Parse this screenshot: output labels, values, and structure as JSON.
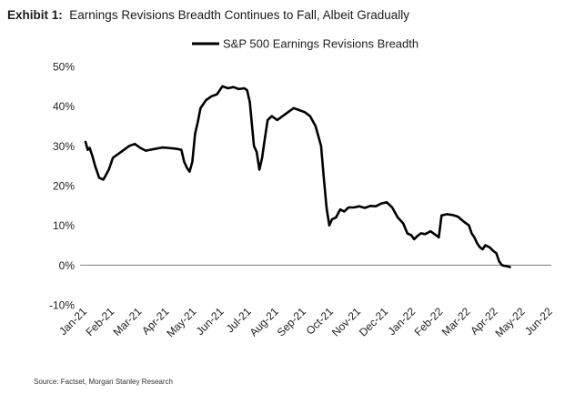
{
  "header": {
    "exhibit_label": "Exhibit 1:",
    "title_text": "Earnings Revisions Breadth Continues to Fall, Albeit Gradually"
  },
  "source": "Source: Factset, Morgan Stanley Research",
  "colors": {
    "series": "#000000",
    "zero_line": "#7f7f7f",
    "text": "#222222"
  },
  "chart_data": {
    "type": "line",
    "title": "Earnings Revisions Breadth Continues to Fall, Albeit Gradually",
    "xlabel": "",
    "ylabel": "",
    "ylim": [
      -10,
      50
    ],
    "grid": false,
    "legend_position": "top-center",
    "yticks": [
      50,
      40,
      30,
      20,
      10,
      0,
      -10
    ],
    "ytick_labels": [
      "50%",
      "40%",
      "30%",
      "20%",
      "10%",
      "0%",
      "-10%"
    ],
    "xtick_labels": [
      "Jan-21",
      "Feb-21",
      "Mar-21",
      "Apr-21",
      "May-21",
      "Jun-21",
      "Jul-21",
      "Aug-21",
      "Sep-21",
      "Oct-21",
      "Nov-21",
      "Dec-21",
      "Jan-22",
      "Feb-22",
      "Mar-22",
      "Apr-22",
      "May-22",
      "Jun-22"
    ],
    "x_unit": "month index (0 = Jan-21)",
    "series": [
      {
        "name": "S&P 500 Earnings Revisions Breadth",
        "color": "#000000",
        "points": [
          [
            0.0,
            31.0
          ],
          [
            0.08,
            29.0
          ],
          [
            0.15,
            29.5
          ],
          [
            0.25,
            27.5
          ],
          [
            0.35,
            25.0
          ],
          [
            0.5,
            22.0
          ],
          [
            0.65,
            21.5
          ],
          [
            0.85,
            24.0
          ],
          [
            1.0,
            27.0
          ],
          [
            1.3,
            28.5
          ],
          [
            1.6,
            30.0
          ],
          [
            1.8,
            30.5
          ],
          [
            2.0,
            29.5
          ],
          [
            2.2,
            28.8
          ],
          [
            2.5,
            29.2
          ],
          [
            2.8,
            29.6
          ],
          [
            3.0,
            29.5
          ],
          [
            3.3,
            29.3
          ],
          [
            3.5,
            29.0
          ],
          [
            3.6,
            26.0
          ],
          [
            3.7,
            24.5
          ],
          [
            3.8,
            23.5
          ],
          [
            3.9,
            26.0
          ],
          [
            4.0,
            33.0
          ],
          [
            4.1,
            36.0
          ],
          [
            4.2,
            39.5
          ],
          [
            4.4,
            41.5
          ],
          [
            4.6,
            42.5
          ],
          [
            4.8,
            43.0
          ],
          [
            5.0,
            45.0
          ],
          [
            5.2,
            44.5
          ],
          [
            5.4,
            44.8
          ],
          [
            5.6,
            44.3
          ],
          [
            5.8,
            44.5
          ],
          [
            5.9,
            44.0
          ],
          [
            6.0,
            41.0
          ],
          [
            6.15,
            30.0
          ],
          [
            6.25,
            28.5
          ],
          [
            6.35,
            24.0
          ],
          [
            6.45,
            27.0
          ],
          [
            6.55,
            32.0
          ],
          [
            6.65,
            36.5
          ],
          [
            6.8,
            37.5
          ],
          [
            7.0,
            36.5
          ],
          [
            7.2,
            37.5
          ],
          [
            7.4,
            38.5
          ],
          [
            7.6,
            39.5
          ],
          [
            7.8,
            39.0
          ],
          [
            8.0,
            38.5
          ],
          [
            8.2,
            37.5
          ],
          [
            8.4,
            35.0
          ],
          [
            8.6,
            30.0
          ],
          [
            8.7,
            22.0
          ],
          [
            8.8,
            14.5
          ],
          [
            8.9,
            10.0
          ],
          [
            9.0,
            11.5
          ],
          [
            9.15,
            12.0
          ],
          [
            9.3,
            14.0
          ],
          [
            9.45,
            13.5
          ],
          [
            9.6,
            14.5
          ],
          [
            9.8,
            14.5
          ],
          [
            10.0,
            14.8
          ],
          [
            10.2,
            14.4
          ],
          [
            10.4,
            14.9
          ],
          [
            10.6,
            14.8
          ],
          [
            10.8,
            15.5
          ],
          [
            11.0,
            15.8
          ],
          [
            11.2,
            14.5
          ],
          [
            11.4,
            12.0
          ],
          [
            11.6,
            10.5
          ],
          [
            11.75,
            8.0
          ],
          [
            11.9,
            7.5
          ],
          [
            12.0,
            6.5
          ],
          [
            12.1,
            7.2
          ],
          [
            12.25,
            8.0
          ],
          [
            12.4,
            7.8
          ],
          [
            12.6,
            8.5
          ],
          [
            12.8,
            7.5
          ],
          [
            12.9,
            7.0
          ],
          [
            13.0,
            12.5
          ],
          [
            13.2,
            12.8
          ],
          [
            13.4,
            12.6
          ],
          [
            13.6,
            12.2
          ],
          [
            13.8,
            11.0
          ],
          [
            14.0,
            10.0
          ],
          [
            14.1,
            8.0
          ],
          [
            14.2,
            7.0
          ],
          [
            14.3,
            5.5
          ],
          [
            14.4,
            4.5
          ],
          [
            14.5,
            4.0
          ],
          [
            14.6,
            5.0
          ],
          [
            14.75,
            4.5
          ],
          [
            14.9,
            3.5
          ],
          [
            15.0,
            3.0
          ],
          [
            15.1,
            1.0
          ],
          [
            15.2,
            0.0
          ],
          [
            15.3,
            -0.2
          ],
          [
            15.4,
            -0.3
          ],
          [
            15.5,
            -0.5
          ]
        ]
      }
    ]
  }
}
